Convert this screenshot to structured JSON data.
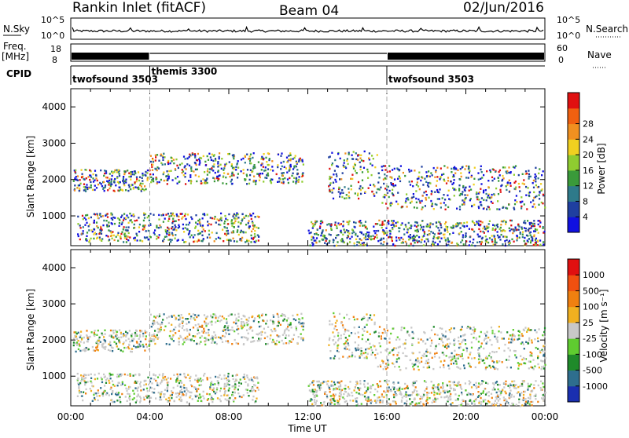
{
  "header": {
    "station": "Rankin Inlet (fitACF)",
    "beam": "Beam 04",
    "date": "02/Jun/2016"
  },
  "top_panels": {
    "nsky_label": "N.Sky",
    "nsky_ticks": [
      "10^5",
      "10^0"
    ],
    "nsearch_label": "N.Search",
    "nsearch_ticks": [
      "10^5",
      "10^0"
    ],
    "freq_label_1": "Freq.",
    "freq_label_2": "[MHz]",
    "freq_ticks": [
      "18",
      "8"
    ],
    "nave_label": "Nave",
    "nave_ticks": [
      "60",
      "0"
    ],
    "cpid_label": "CPID",
    "cpid_segments": [
      {
        "label": "twofsound 3503",
        "start_h": 0,
        "end_h": 4
      },
      {
        "label": "themis 3300",
        "start_h": 4,
        "end_h": 16
      },
      {
        "label": "twofsound 3503",
        "start_h": 16,
        "end_h": 24
      }
    ]
  },
  "chart_data": [
    {
      "type": "heatmap",
      "title": "",
      "ylabel": "Slant Range [km]",
      "yticks": [
        "1000",
        "2000",
        "3000",
        "4000"
      ],
      "ylim": [
        180,
        4500
      ],
      "xlim": [
        0,
        24
      ],
      "colorbar_label": "Power [dB]",
      "colorbar_ticks": [
        "4",
        "8",
        "12",
        "16",
        "20",
        "24",
        "28"
      ],
      "colorbar_colors": [
        "#1010e0",
        "#1f3fa0",
        "#2e7a8a",
        "#3a9a3a",
        "#8fcc30",
        "#f0d020",
        "#f09020",
        "#f06010",
        "#e01010"
      ]
    },
    {
      "type": "heatmap",
      "title": "",
      "ylabel": "Slant Range [km]",
      "yticks": [
        "1000",
        "2000",
        "3000",
        "4000"
      ],
      "ylim": [
        180,
        4500
      ],
      "xlim": [
        0,
        24
      ],
      "xticks": [
        "00:00",
        "04:00",
        "08:00",
        "12:00",
        "16:00",
        "20:00",
        "00:00"
      ],
      "xlabel": "Time UT",
      "colorbar_label": "Velocity [m s⁻¹]",
      "colorbar_ticks": [
        "1000",
        "500",
        "100",
        "25",
        "-25",
        "-100",
        "-500",
        "-1000"
      ],
      "colorbar_colors": [
        "#1a2fb0",
        "#2e6e8e",
        "#1f8a2a",
        "#5fcc30",
        "#c8c8c8",
        "#f0b020",
        "#f08010",
        "#f05010",
        "#e01010"
      ]
    }
  ]
}
